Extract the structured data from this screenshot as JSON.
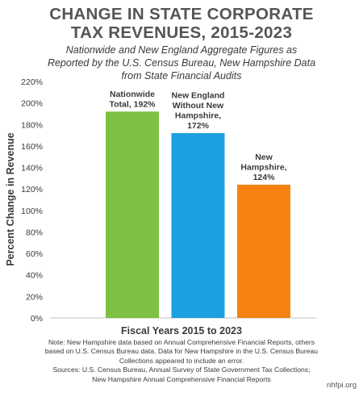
{
  "header": {
    "title_line1": "CHANGE IN STATE CORPORATE",
    "title_line2": "TAX REVENUES, 2015-2023",
    "subtitle_line1": "Nationwide and New England Aggregate Figures as",
    "subtitle_line2": "Reported by the U.S. Census Bureau, New Hampshire Data",
    "subtitle_line3": "from State Financial Audits"
  },
  "footer": {
    "note_line1": "Note: New Hampshire data based on Annual Comprehensive Financial Reports, others",
    "note_line2": "based on U.S. Census Bureau data. Data for New Hampshire in the U.S. Census Bureau",
    "note_line3": "Collections appeared to include an error.",
    "sources_line1": "Sources: U.S. Census Bureau, Annual Survey of State Government Tax Collections;",
    "sources_line2": "New Hampshire Annual Comprehensive Financial Reports",
    "credit": "nhfpi.org"
  },
  "chart_data": {
    "type": "bar",
    "xlabel": "Fiscal Years 2015 to 2023",
    "ylabel": "Percent Change in Revenue",
    "ylim": [
      0,
      220
    ],
    "yticks": [
      0,
      20,
      40,
      60,
      80,
      100,
      120,
      140,
      160,
      180,
      200,
      220
    ],
    "ytick_labels": [
      "0%",
      "20%",
      "40%",
      "60%",
      "80%",
      "100%",
      "120%",
      "140%",
      "160%",
      "180%",
      "200%",
      "220%"
    ],
    "grid": false,
    "categories": [
      "Nationwide Total",
      "New England Without New Hampshire",
      "New Hampshire"
    ],
    "values": [
      192,
      172,
      124
    ],
    "colors": [
      "#7cc142",
      "#1ba0e2",
      "#f6830f"
    ],
    "data_labels": [
      [
        "Nationwide",
        "Total, 192%"
      ],
      [
        "New England",
        "Without New",
        "Hampshire,",
        "172%"
      ],
      [
        "New",
        "Hampshire,",
        "124%"
      ]
    ]
  }
}
